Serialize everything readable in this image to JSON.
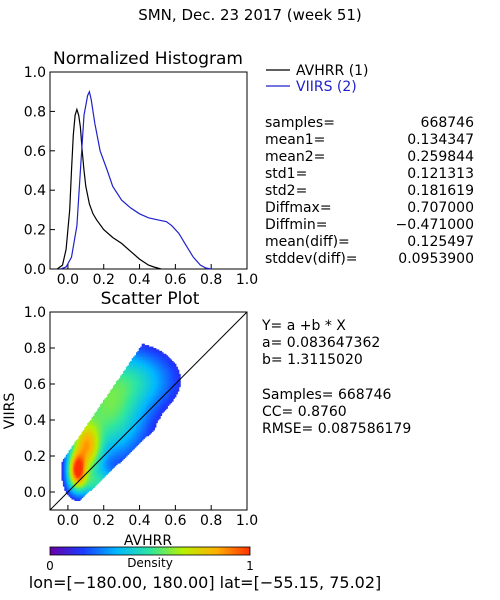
{
  "header": {
    "title": "SMN,  Dec. 23 2017 (week 51)"
  },
  "histogram": {
    "title": "Normalized Histogram",
    "legend": [
      {
        "label": "AVHRR (1)",
        "color": "#000000"
      },
      {
        "label": "VIIRS (2)",
        "color": "#2020cc"
      }
    ]
  },
  "hist_stats": [
    {
      "label": "samples=",
      "value": "668746"
    },
    {
      "label": "mean1=",
      "value": "0.134347"
    },
    {
      "label": "mean2=",
      "value": "0.259844"
    },
    {
      "label": "std1=",
      "value": "0.121313"
    },
    {
      "label": "std2=",
      "value": "0.181619"
    },
    {
      "label": "Diffmax=",
      "value": "0.707000"
    },
    {
      "label": "Diffmin=",
      "value": "−0.471000"
    },
    {
      "label": "mean(diff)=",
      "value": "0.125497"
    },
    {
      "label": "stddev(diff)=",
      "value": "0.0953900"
    }
  ],
  "scatter": {
    "title": "Scatter Plot",
    "xlabel": "AVHRR",
    "ylabel": "VIIRS",
    "regression": [
      "Y= a +b * X",
      "a= 0.083647362",
      "b= 1.3115020"
    ],
    "stats": [
      "Samples= 668746",
      "CC=  0.8760",
      "RMSE= 0.087586179"
    ]
  },
  "colorbar": {
    "label": "Density",
    "min_label": "0",
    "max_label": "1"
  },
  "footer": {
    "text": "lon=[−180.00, 180.00] lat=[−55.15, 75.02]"
  },
  "chart_data": [
    {
      "type": "line",
      "title": "Normalized Histogram",
      "xlim": [
        -0.1,
        1.0
      ],
      "ylim": [
        0.0,
        1.0
      ],
      "xticks": [
        "0.0",
        "0.2",
        "0.4",
        "0.6",
        "0.8",
        "1.0"
      ],
      "yticks": [
        "0.0",
        "0.2",
        "0.4",
        "0.6",
        "0.8",
        "1.0"
      ],
      "legend_position": "right",
      "series": [
        {
          "name": "AVHRR (1)",
          "color": "#000000",
          "x": [
            -0.06,
            -0.03,
            -0.01,
            0.01,
            0.02,
            0.03,
            0.04,
            0.05,
            0.06,
            0.07,
            0.08,
            0.09,
            0.1,
            0.12,
            0.14,
            0.16,
            0.2,
            0.25,
            0.3,
            0.35,
            0.4,
            0.45,
            0.48,
            0.52
          ],
          "y": [
            0.0,
            0.02,
            0.1,
            0.3,
            0.5,
            0.68,
            0.78,
            0.81,
            0.78,
            0.72,
            0.6,
            0.5,
            0.42,
            0.33,
            0.28,
            0.25,
            0.2,
            0.16,
            0.13,
            0.09,
            0.05,
            0.02,
            0.01,
            0.0
          ]
        },
        {
          "name": "VIIRS (2)",
          "color": "#2020cc",
          "x": [
            -0.04,
            -0.01,
            0.02,
            0.05,
            0.07,
            0.09,
            0.11,
            0.12,
            0.13,
            0.15,
            0.18,
            0.22,
            0.25,
            0.3,
            0.35,
            0.4,
            0.45,
            0.5,
            0.55,
            0.58,
            0.62,
            0.66,
            0.7,
            0.74,
            0.77,
            0.8
          ],
          "y": [
            0.0,
            0.01,
            0.06,
            0.22,
            0.5,
            0.78,
            0.88,
            0.9,
            0.86,
            0.74,
            0.6,
            0.5,
            0.42,
            0.35,
            0.31,
            0.28,
            0.26,
            0.25,
            0.24,
            0.22,
            0.18,
            0.12,
            0.06,
            0.02,
            0.005,
            0.0
          ]
        }
      ]
    },
    {
      "type": "heatmap",
      "title": "Scatter Plot",
      "xlabel": "AVHRR",
      "ylabel": "VIIRS",
      "xlim": [
        -0.1,
        1.0
      ],
      "ylim": [
        -0.1,
        1.0
      ],
      "xticks": [
        "0.0",
        "0.2",
        "0.4",
        "0.6",
        "0.8",
        "1.0"
      ],
      "yticks": [
        "0.0",
        "0.2",
        "0.4",
        "0.6",
        "0.8",
        "1.0"
      ],
      "reference_line": {
        "from": [
          -0.1,
          -0.1
        ],
        "to": [
          1.0,
          1.0
        ]
      },
      "regression": {
        "a": 0.083647362,
        "b": 1.311502
      },
      "colorbar": {
        "label": "Density",
        "range": [
          0,
          1
        ],
        "colors": [
          "#6a00a8",
          "#1a3cff",
          "#00b8ff",
          "#2ee6a0",
          "#b8f000",
          "#ffb000",
          "#ff3000"
        ]
      },
      "density_clusters": [
        {
          "x": 0.05,
          "y": 0.12,
          "sx": 0.03,
          "sy": 0.06,
          "w": 1.0
        },
        {
          "x": 0.1,
          "y": 0.25,
          "sx": 0.05,
          "sy": 0.09,
          "w": 0.7
        },
        {
          "x": 0.22,
          "y": 0.45,
          "sx": 0.12,
          "sy": 0.15,
          "w": 0.35
        },
        {
          "x": 0.35,
          "y": 0.62,
          "sx": 0.14,
          "sy": 0.1,
          "w": 0.2
        },
        {
          "x": 0.15,
          "y": 0.05,
          "sx": 0.08,
          "sy": 0.05,
          "w": 0.25
        }
      ]
    }
  ]
}
